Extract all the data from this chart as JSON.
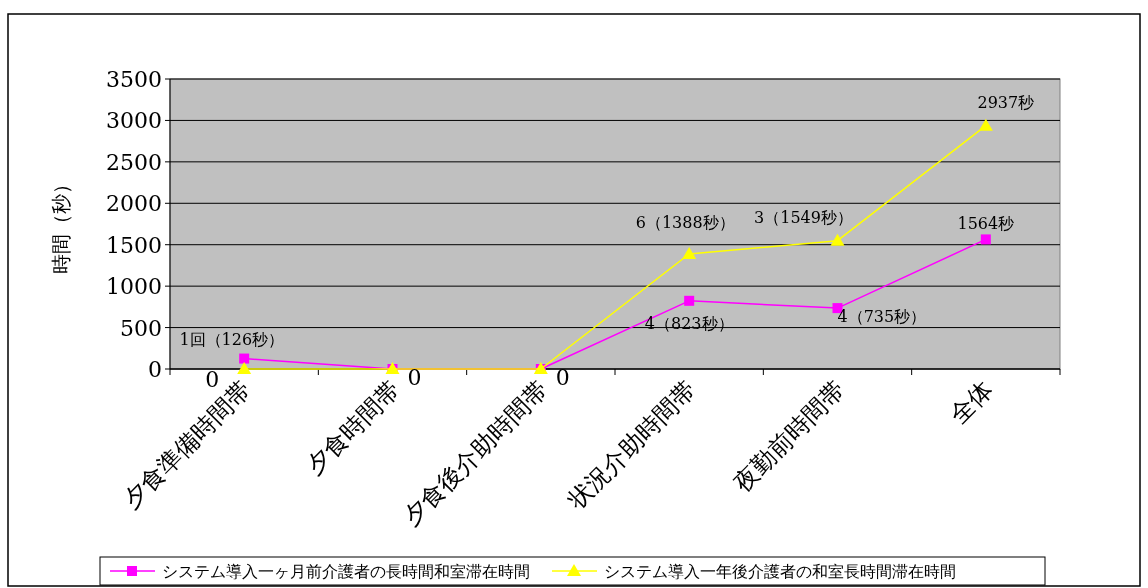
{
  "chart_data": {
    "type": "line",
    "ylabel": "時間（秒）",
    "categories": [
      "夕食準備時間帯",
      "夕食時間帯",
      "夕食後介助時間帯",
      "状況介助時間帯",
      "夜勤前時間帯",
      "全体"
    ],
    "ylim": [
      0,
      3500
    ],
    "yticks": [
      0,
      500,
      1000,
      1500,
      2000,
      2500,
      3000,
      3500
    ],
    "grid": "y",
    "legend": "bottom",
    "series": [
      {
        "name": "システム導入一ヶ月前介護者の長時間和室滞在時間",
        "color": "#ff00ff",
        "marker": "square",
        "values": [
          126,
          0,
          0,
          823,
          735,
          1564
        ],
        "value_labels": [
          "1回（126秒）",
          null,
          null,
          "4（823秒）",
          "4（735秒）",
          "1564秒"
        ]
      },
      {
        "name": "システム導入一年後介護者の和室長時間滞在時間",
        "color": "#ffff00",
        "marker": "triangle",
        "values": [
          0,
          0,
          0,
          1388,
          1549,
          2937
        ],
        "value_labels": [
          "0",
          "0",
          "0",
          "6（1388秒）",
          "3（1549秒）",
          "2937秒"
        ]
      }
    ]
  }
}
